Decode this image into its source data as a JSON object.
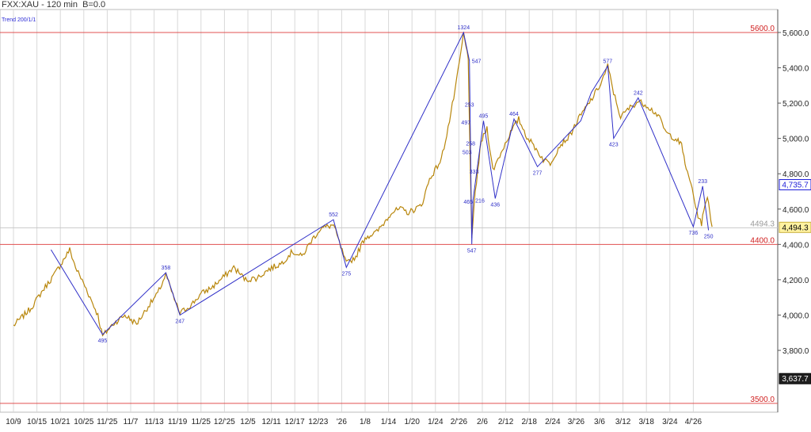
{
  "header": {
    "title": "FXX:XAU - 120 min",
    "b_value": "B=0.0",
    "indicator": "Trend 200/1/1"
  },
  "colors": {
    "price": "#b8860b",
    "zigzag": "#3030c8",
    "hline": "#e05050",
    "grid": "#d8d8d8",
    "current_price_bg": "#202020",
    "blue_badge": "#1c1cd8"
  },
  "chart_data": {
    "type": "line",
    "ylim": [
      3450,
      5730
    ],
    "x_ticks": [
      "10/9",
      "10/15",
      "10/21",
      "10/25",
      "11/'25",
      "11/7",
      "11/13",
      "11/19",
      "11/25",
      "12/'25",
      "12/5",
      "12/11",
      "12/17",
      "12/23",
      "'26",
      "1/8",
      "1/14",
      "1/20",
      "1/24",
      "2/'26",
      "2/6",
      "2/12",
      "2/18",
      "2/24",
      "3/'26",
      "3/6",
      "3/12",
      "3/18",
      "3/24",
      "4/'26"
    ],
    "y_ticks": [
      "5,600.0",
      "5,400.0",
      "5,200.0",
      "5,000.0",
      "4,800.0",
      "4,600.0",
      "4,400.0",
      "4,200.0",
      "4,000.0",
      "3,800.0"
    ],
    "y_tick_values": [
      5600,
      5400,
      5200,
      5000,
      4800,
      4600,
      4400,
      4200,
      4000,
      3800
    ],
    "hlines": [
      {
        "label": "5600.0",
        "value": 5600
      },
      {
        "label": "4400.0",
        "value": 4400
      },
      {
        "label": "3500.0",
        "value": 3500
      }
    ],
    "gray_level": {
      "label": "4494.3",
      "value": 4494.3
    },
    "price_badges": [
      {
        "label": "4,735.7",
        "value": 4735.7,
        "style": "blue"
      },
      {
        "label": "4,494.3",
        "value": 4494.3,
        "style": "yellow"
      },
      {
        "label": "3,637.7",
        "value": 3637.7,
        "style": "dark"
      }
    ],
    "price_anchors": [
      [
        0,
        3940
      ],
      [
        1.5,
        4040
      ],
      [
        2.5,
        4140
      ],
      [
        3.5,
        4230
      ],
      [
        4.8,
        4370
      ],
      [
        5.3,
        4270
      ],
      [
        6.2,
        4150
      ],
      [
        7.2,
        4000
      ],
      [
        7.6,
        3880
      ],
      [
        8.5,
        3950
      ],
      [
        9.5,
        4000
      ],
      [
        10.5,
        3950
      ],
      [
        11.5,
        4050
      ],
      [
        12.3,
        4120
      ],
      [
        13.0,
        4230
      ],
      [
        13.6,
        4110
      ],
      [
        14.2,
        4010
      ],
      [
        15.2,
        4060
      ],
      [
        16,
        4120
      ],
      [
        17,
        4160
      ],
      [
        18,
        4220
      ],
      [
        18.8,
        4270
      ],
      [
        19.8,
        4200
      ],
      [
        20.8,
        4210
      ],
      [
        21.8,
        4260
      ],
      [
        22.8,
        4290
      ],
      [
        23.8,
        4360
      ],
      [
        24.6,
        4330
      ],
      [
        25.4,
        4420
      ],
      [
        26.2,
        4490
      ],
      [
        27.3,
        4510
      ],
      [
        27.8,
        4410
      ],
      [
        28.4,
        4290
      ],
      [
        29.2,
        4330
      ],
      [
        30,
        4440
      ],
      [
        31,
        4470
      ],
      [
        31.7,
        4530
      ],
      [
        32.2,
        4580
      ],
      [
        33,
        4600
      ],
      [
        33.7,
        4580
      ],
      [
        34.8,
        4620
      ],
      [
        35.5,
        4770
      ],
      [
        36.5,
        4880
      ],
      [
        37.2,
        5100
      ],
      [
        37.8,
        5320
      ],
      [
        38.4,
        5590
      ],
      [
        38.8,
        5450
      ],
      [
        39.1,
        4420
      ],
      [
        39.4,
        4700
      ],
      [
        39.9,
        4980
      ],
      [
        40.4,
        5060
      ],
      [
        40.9,
        4820
      ],
      [
        41.6,
        4920
      ],
      [
        42.3,
        5020
      ],
      [
        43.1,
        5110
      ],
      [
        43.8,
        5010
      ],
      [
        44.6,
        4940
      ],
      [
        45.2,
        4880
      ],
      [
        45.8,
        4860
      ],
      [
        46.6,
        4960
      ],
      [
        47.4,
        5010
      ],
      [
        48.2,
        5110
      ],
      [
        48.9,
        5180
      ],
      [
        49.5,
        5240
      ],
      [
        50.1,
        5310
      ],
      [
        50.7,
        5410
      ],
      [
        51.2,
        5260
      ],
      [
        51.8,
        5120
      ],
      [
        52.5,
        5170
      ],
      [
        53.3,
        5210
      ],
      [
        54.0,
        5190
      ],
      [
        55.0,
        5130
      ],
      [
        55.7,
        5030
      ],
      [
        56.5,
        5000
      ],
      [
        57.0,
        4960
      ],
      [
        57.5,
        4800
      ],
      [
        57.9,
        4720
      ],
      [
        58.3,
        4580
      ],
      [
        58.7,
        4520
      ],
      [
        59.2,
        4680
      ],
      [
        59.6,
        4500
      ]
    ],
    "zigzag": [
      {
        "i": 3.2,
        "v": 4370,
        "label": ""
      },
      {
        "i": 7.6,
        "v": 3890,
        "label": "495",
        "pos": "below"
      },
      {
        "i": 13.0,
        "v": 4240,
        "label": "358",
        "pos": "above"
      },
      {
        "i": 14.2,
        "v": 4000,
        "label": "247",
        "pos": "below"
      },
      {
        "i": 27.3,
        "v": 4540,
        "label": "552",
        "pos": "above"
      },
      {
        "i": 28.4,
        "v": 4270,
        "label": "275",
        "pos": "below"
      },
      {
        "i": 38.4,
        "v": 5600,
        "label": "1324",
        "pos": "above"
      },
      {
        "i": 38.9,
        "v": 5440,
        "label": "547",
        "pos": "right"
      },
      {
        "i": 39.1,
        "v": 4400,
        "label": "547",
        "pos": "below"
      },
      {
        "i": 39.2,
        "v": 4650,
        "label": "216",
        "pos": "right"
      },
      {
        "i": 40.1,
        "v": 5100,
        "label": "495",
        "pos": "above"
      },
      {
        "i": 41.1,
        "v": 4660,
        "label": "436",
        "pos": "below"
      },
      {
        "i": 42.7,
        "v": 5110,
        "label": "464",
        "pos": "above"
      },
      {
        "i": 44.7,
        "v": 4840,
        "label": "277",
        "pos": "below"
      },
      {
        "i": 48.4,
        "v": 5100,
        "label": ""
      },
      {
        "i": 49.3,
        "v": 5260,
        "label": ""
      },
      {
        "i": 50.7,
        "v": 5410,
        "label": "577",
        "pos": "above"
      },
      {
        "i": 51.2,
        "v": 5000,
        "label": "423",
        "pos": "below"
      },
      {
        "i": 53.3,
        "v": 5230,
        "label": "242",
        "pos": "above"
      },
      {
        "i": 58.0,
        "v": 4500,
        "label": "736",
        "pos": "below"
      },
      {
        "i": 58.8,
        "v": 4730,
        "label": "233",
        "pos": "above"
      },
      {
        "i": 59.3,
        "v": 4480,
        "label": "250",
        "pos": "below"
      }
    ],
    "extra_labels": [
      {
        "i": 38.9,
        "v": 5180,
        "label": "253"
      },
      {
        "i": 38.6,
        "v": 5080,
        "label": "497"
      },
      {
        "i": 39.0,
        "v": 4960,
        "label": "258"
      },
      {
        "i": 38.7,
        "v": 4910,
        "label": "503"
      },
      {
        "i": 39.3,
        "v": 4800,
        "label": "333"
      },
      {
        "i": 38.8,
        "v": 4630,
        "label": "465"
      }
    ]
  }
}
